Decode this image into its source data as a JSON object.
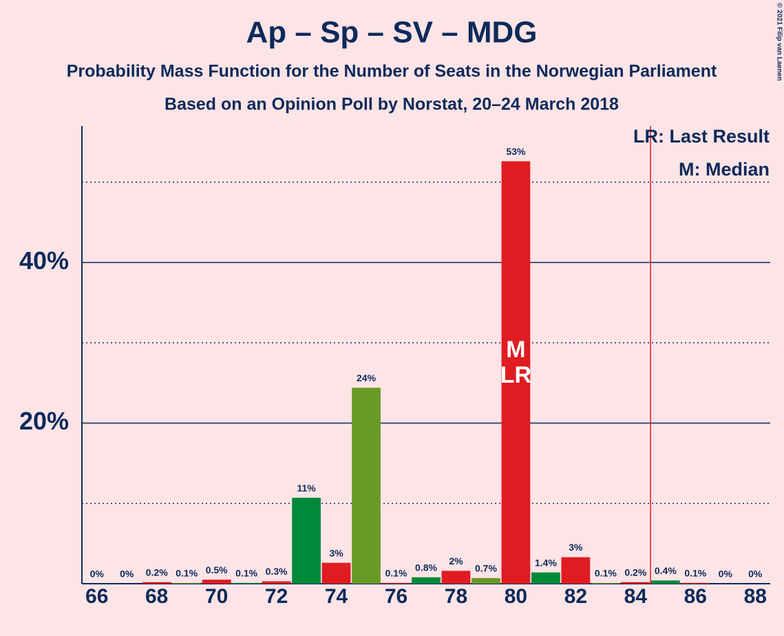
{
  "chart_data": {
    "type": "bar",
    "title": "Ap – Sp – SV – MDG",
    "subtitle": "Probability Mass Function for the Number of Seats in the Norwegian Parliament",
    "subtitle2": "Based on an Opinion Poll by Norstat, 20–24 March 2018",
    "copyright": "© 2021 Filip van Laenen",
    "x": [
      66,
      67,
      68,
      69,
      70,
      71,
      72,
      73,
      74,
      75,
      76,
      77,
      78,
      79,
      80,
      81,
      82,
      83,
      84,
      85,
      86,
      87,
      88
    ],
    "values": [
      0,
      0,
      0.2,
      0.1,
      0.5,
      0.1,
      0.3,
      10.7,
      2.6,
      24.4,
      0.1,
      0.8,
      1.6,
      0.7,
      52.6,
      1.4,
      3.3,
      0.1,
      0.2,
      0.4,
      0.1,
      0,
      0
    ],
    "value_labels": [
      "0%",
      "0%",
      "0.2%",
      "0.1%",
      "0.5%",
      "0.1%",
      "0.3%",
      "11%",
      "3%",
      "24%",
      "0.1%",
      "0.8%",
      "2%",
      "0.7%",
      "53%",
      "1.4%",
      "3%",
      "0.1%",
      "0.2%",
      "0.4%",
      "0.1%",
      "0%",
      "0%"
    ],
    "colors": [
      "#e01b22",
      "#00893a",
      "#e01b22",
      "#6a9a26",
      "#e01b22",
      "#00893a",
      "#e01b22",
      "#00893a",
      "#e01b22",
      "#6a9a26",
      "#e01b22",
      "#00893a",
      "#e01b22",
      "#6a9a26",
      "#e01b22",
      "#00893a",
      "#e01b22",
      "#6a9a26",
      "#e01b22",
      "#00893a",
      "#e01b22",
      "#6a9a26",
      "#e01b22"
    ],
    "xlim": [
      65.5,
      88.5
    ],
    "xticks": [
      66,
      68,
      70,
      72,
      74,
      76,
      78,
      80,
      82,
      84,
      86,
      88
    ],
    "ylim": [
      0,
      57
    ],
    "yticks": [
      {
        "value": 20,
        "label": "20%"
      },
      {
        "value": 40,
        "label": "40%"
      }
    ],
    "minor_yticks": [
      10,
      30,
      50
    ],
    "majority_line": 84.5,
    "median": 80,
    "median_label": "M",
    "last_result": 80,
    "last_result_label": "LR",
    "legend": [
      "LR: Last Result",
      "M: Median"
    ]
  }
}
